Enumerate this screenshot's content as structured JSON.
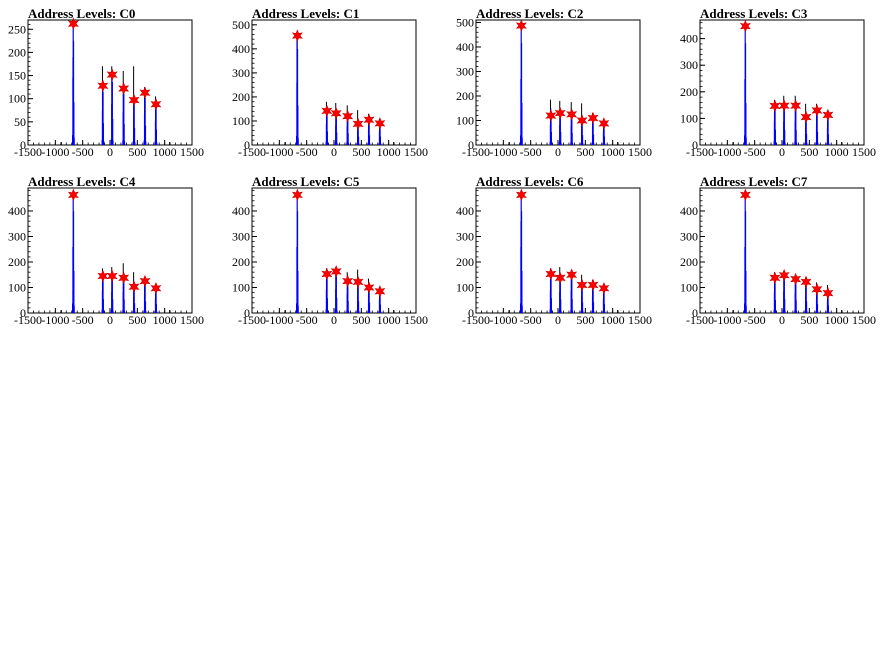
{
  "chart_data": [
    {
      "type": "bar",
      "title": "Address Levels: C0",
      "xlim": [
        -1500,
        1500
      ],
      "ylim": [
        0,
        270
      ],
      "xticks": [
        "-1500",
        "-1000",
        "-500",
        "0",
        "500",
        "1000",
        "1500"
      ],
      "yticks": [
        "0",
        "50",
        "100",
        "150",
        "200",
        "250"
      ],
      "spikes": [
        {
          "x": -670,
          "y": 265,
          "secondary": 190
        },
        {
          "x": -130,
          "y": 135,
          "secondary": 170
        },
        {
          "x": 40,
          "y": 160,
          "secondary": 170
        },
        {
          "x": 250,
          "y": 130,
          "secondary": 160
        },
        {
          "x": 440,
          "y": 105,
          "secondary": 170
        },
        {
          "x": 640,
          "y": 120,
          "secondary": 125
        },
        {
          "x": 840,
          "y": 95,
          "secondary": 105
        }
      ],
      "peaks": [
        {
          "x": -670,
          "y": 262
        },
        {
          "x": -130,
          "y": 128
        },
        {
          "x": 40,
          "y": 152
        },
        {
          "x": 250,
          "y": 122
        },
        {
          "x": 440,
          "y": 97
        },
        {
          "x": 640,
          "y": 113
        },
        {
          "x": 840,
          "y": 88
        }
      ]
    },
    {
      "type": "bar",
      "title": "Address Levels: C1",
      "xlim": [
        -1500,
        1500
      ],
      "ylim": [
        0,
        520
      ],
      "xticks": [
        "-1500",
        "-1000",
        "-500",
        "0",
        "500",
        "1000",
        "1500"
      ],
      "yticks": [
        "0",
        "100",
        "200",
        "300",
        "400",
        "500"
      ],
      "spikes": [
        {
          "x": -670,
          "y": 470,
          "secondary": 440
        },
        {
          "x": -130,
          "y": 160,
          "secondary": 180
        },
        {
          "x": 40,
          "y": 150,
          "secondary": 175
        },
        {
          "x": 250,
          "y": 140,
          "secondary": 165
        },
        {
          "x": 440,
          "y": 100,
          "secondary": 145
        },
        {
          "x": 640,
          "y": 115,
          "secondary": 130
        },
        {
          "x": 840,
          "y": 100,
          "secondary": 110
        }
      ],
      "peaks": [
        {
          "x": -670,
          "y": 455
        },
        {
          "x": -130,
          "y": 142
        },
        {
          "x": 40,
          "y": 132
        },
        {
          "x": 250,
          "y": 120
        },
        {
          "x": 440,
          "y": 88
        },
        {
          "x": 640,
          "y": 105
        },
        {
          "x": 840,
          "y": 90
        }
      ]
    },
    {
      "type": "bar",
      "title": "Address Levels: C2",
      "xlim": [
        -1500,
        1500
      ],
      "ylim": [
        0,
        510
      ],
      "xticks": [
        "-1500",
        "-1000",
        "-500",
        "0",
        "500",
        "1000",
        "1500"
      ],
      "yticks": [
        "0",
        "100",
        "200",
        "300",
        "400",
        "500"
      ],
      "spikes": [
        {
          "x": -670,
          "y": 490,
          "secondary": 140
        },
        {
          "x": -130,
          "y": 150,
          "secondary": 185
        },
        {
          "x": 40,
          "y": 150,
          "secondary": 180
        },
        {
          "x": 250,
          "y": 140,
          "secondary": 175
        },
        {
          "x": 440,
          "y": 115,
          "secondary": 170
        },
        {
          "x": 640,
          "y": 120,
          "secondary": 130
        },
        {
          "x": 840,
          "y": 100,
          "secondary": 105
        }
      ],
      "peaks": [
        {
          "x": -670,
          "y": 487
        },
        {
          "x": -130,
          "y": 120
        },
        {
          "x": 40,
          "y": 130
        },
        {
          "x": 250,
          "y": 125
        },
        {
          "x": 440,
          "y": 100
        },
        {
          "x": 640,
          "y": 110
        },
        {
          "x": 840,
          "y": 88
        }
      ]
    },
    {
      "type": "bar",
      "title": "Address Levels: C3",
      "xlim": [
        -1500,
        1500
      ],
      "ylim": [
        0,
        470
      ],
      "xticks": [
        "-1500",
        "-1000",
        "-500",
        "0",
        "500",
        "1000",
        "1500"
      ],
      "yticks": [
        "0",
        "100",
        "200",
        "300",
        "400"
      ],
      "spikes": [
        {
          "x": -670,
          "y": 450,
          "secondary": 60
        },
        {
          "x": -130,
          "y": 165,
          "secondary": 170
        },
        {
          "x": 40,
          "y": 160,
          "secondary": 185
        },
        {
          "x": 250,
          "y": 160,
          "secondary": 185
        },
        {
          "x": 440,
          "y": 120,
          "secondary": 155
        },
        {
          "x": 640,
          "y": 140,
          "secondary": 155
        },
        {
          "x": 840,
          "y": 115,
          "secondary": 125
        }
      ],
      "peaks": [
        {
          "x": -670,
          "y": 447
        },
        {
          "x": -130,
          "y": 147
        },
        {
          "x": 40,
          "y": 148
        },
        {
          "x": 250,
          "y": 148
        },
        {
          "x": 440,
          "y": 105
        },
        {
          "x": 640,
          "y": 130
        },
        {
          "x": 840,
          "y": 113
        }
      ]
    },
    {
      "type": "bar",
      "title": "Address Levels: C4",
      "xlim": [
        -1500,
        1500
      ],
      "ylim": [
        0,
        490
      ],
      "xticks": [
        "-1500",
        "-1000",
        "-500",
        "0",
        "500",
        "1000",
        "1500"
      ],
      "yticks": [
        "0",
        "100",
        "200",
        "300",
        "400"
      ],
      "spikes": [
        {
          "x": -670,
          "y": 470,
          "secondary": 90
        },
        {
          "x": -130,
          "y": 155,
          "secondary": 175
        },
        {
          "x": 40,
          "y": 150,
          "secondary": 180
        },
        {
          "x": 250,
          "y": 150,
          "secondary": 195
        },
        {
          "x": 440,
          "y": 110,
          "secondary": 160
        },
        {
          "x": 640,
          "y": 130,
          "secondary": 140
        },
        {
          "x": 840,
          "y": 100,
          "secondary": 105
        }
      ],
      "peaks": [
        {
          "x": -670,
          "y": 463
        },
        {
          "x": -130,
          "y": 145
        },
        {
          "x": 40,
          "y": 145
        },
        {
          "x": 250,
          "y": 138
        },
        {
          "x": 440,
          "y": 103
        },
        {
          "x": 640,
          "y": 125
        },
        {
          "x": 840,
          "y": 97
        }
      ]
    },
    {
      "type": "bar",
      "title": "Address Levels: C5",
      "xlim": [
        -1500,
        1500
      ],
      "ylim": [
        0,
        490
      ],
      "xticks": [
        "-1500",
        "-1000",
        "-500",
        "0",
        "500",
        "1000",
        "1500"
      ],
      "yticks": [
        "0",
        "100",
        "200",
        "300",
        "400"
      ],
      "spikes": [
        {
          "x": -670,
          "y": 470,
          "secondary": 20
        },
        {
          "x": -130,
          "y": 165,
          "secondary": 175
        },
        {
          "x": 40,
          "y": 170,
          "secondary": 180
        },
        {
          "x": 250,
          "y": 135,
          "secondary": 160
        },
        {
          "x": 440,
          "y": 130,
          "secondary": 170
        },
        {
          "x": 640,
          "y": 115,
          "secondary": 135
        },
        {
          "x": 840,
          "y": 95,
          "secondary": 100
        }
      ],
      "peaks": [
        {
          "x": -670,
          "y": 463
        },
        {
          "x": -130,
          "y": 153
        },
        {
          "x": 40,
          "y": 163
        },
        {
          "x": 250,
          "y": 125
        },
        {
          "x": 440,
          "y": 122
        },
        {
          "x": 640,
          "y": 100
        },
        {
          "x": 840,
          "y": 85
        }
      ]
    },
    {
      "type": "bar",
      "title": "Address Levels: C6",
      "xlim": [
        -1500,
        1500
      ],
      "ylim": [
        0,
        490
      ],
      "xticks": [
        "-1500",
        "-1000",
        "-500",
        "0",
        "500",
        "1000",
        "1500"
      ],
      "yticks": [
        "0",
        "100",
        "200",
        "300",
        "400"
      ],
      "spikes": [
        {
          "x": -670,
          "y": 470,
          "secondary": 360
        },
        {
          "x": -130,
          "y": 165,
          "secondary": 175
        },
        {
          "x": 40,
          "y": 150,
          "secondary": 180
        },
        {
          "x": 250,
          "y": 155,
          "secondary": 165
        },
        {
          "x": 440,
          "y": 120,
          "secondary": 150
        },
        {
          "x": 640,
          "y": 120,
          "secondary": 130
        },
        {
          "x": 840,
          "y": 100,
          "secondary": 110
        }
      ],
      "peaks": [
        {
          "x": -670,
          "y": 463
        },
        {
          "x": -130,
          "y": 153
        },
        {
          "x": 40,
          "y": 138
        },
        {
          "x": 250,
          "y": 150
        },
        {
          "x": 440,
          "y": 110
        },
        {
          "x": 640,
          "y": 110
        },
        {
          "x": 840,
          "y": 97
        }
      ]
    },
    {
      "type": "bar",
      "title": "Address Levels: C7",
      "xlim": [
        -1500,
        1500
      ],
      "ylim": [
        0,
        490
      ],
      "xticks": [
        "-1500",
        "-1000",
        "-500",
        "0",
        "500",
        "1000",
        "1500"
      ],
      "yticks": [
        "0",
        "100",
        "200",
        "300",
        "400"
      ],
      "spikes": [
        {
          "x": -670,
          "y": 470,
          "secondary": 145
        },
        {
          "x": -130,
          "y": 145,
          "secondary": 160
        },
        {
          "x": 40,
          "y": 155,
          "secondary": 165
        },
        {
          "x": 250,
          "y": 140,
          "secondary": 150
        },
        {
          "x": 440,
          "y": 130,
          "secondary": 140
        },
        {
          "x": 640,
          "y": 100,
          "secondary": 120
        },
        {
          "x": 840,
          "y": 85,
          "secondary": 110
        }
      ],
      "peaks": [
        {
          "x": -670,
          "y": 463
        },
        {
          "x": -130,
          "y": 138
        },
        {
          "x": 40,
          "y": 148
        },
        {
          "x": 250,
          "y": 133
        },
        {
          "x": 440,
          "y": 122
        },
        {
          "x": 640,
          "y": 93
        },
        {
          "x": 840,
          "y": 78
        }
      ]
    }
  ],
  "colors": {
    "histogram": "#0000ff",
    "outline": "#000000",
    "marker": "#ff0000",
    "marker_edge": "#cc0000"
  }
}
